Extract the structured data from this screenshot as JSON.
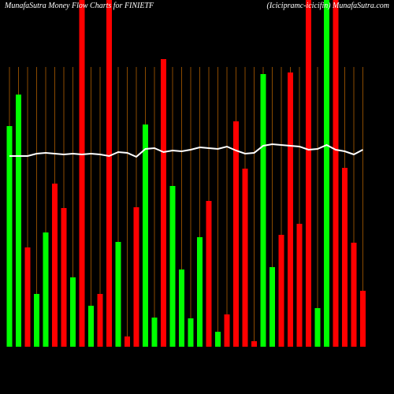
{
  "chart_data": {
    "type": "bar",
    "title": "MunafaSutra  Money Flow  Charts for FINIETF",
    "subtitle": "(Icicipramc-icicifin) MunafaSutra.com",
    "values": [
      280,
      320,
      126,
      67,
      145,
      207,
      176,
      88,
      440,
      52,
      67,
      440,
      133,
      13,
      177,
      282,
      37,
      365,
      204,
      98,
      36,
      139,
      185,
      19,
      41,
      286,
      226,
      7,
      346,
      101,
      142,
      348,
      156,
      440,
      49,
      440,
      440,
      227,
      132,
      71
    ],
    "colors": [
      "#00ff00",
      "#00ff00",
      "#ff0000",
      "#00ff00",
      "#00ff00",
      "#ff0000",
      "#ff0000",
      "#00ff00",
      "#ff0000",
      "#00ff00",
      "#ff0000",
      "#ff0000",
      "#00ff00",
      "#ff0000",
      "#ff0000",
      "#00ff00",
      "#00ff00",
      "#ff0000",
      "#00ff00",
      "#00ff00",
      "#00ff00",
      "#00ff00",
      "#ff0000",
      "#00ff00",
      "#ff0000",
      "#ff0000",
      "#ff0000",
      "#ff0000",
      "#00ff00",
      "#00ff00",
      "#ff0000",
      "#ff0000",
      "#ff0000",
      "#ff0000",
      "#00ff00",
      "#00ff00",
      "#ff0000",
      "#ff0000",
      "#ff0000",
      "#ff0000"
    ],
    "line": {
      "color": "#ffffff",
      "values": [
        242,
        242,
        242,
        245,
        246,
        245,
        244,
        245,
        244,
        245,
        244,
        242,
        247,
        246,
        241,
        251,
        252,
        247,
        249,
        248,
        250,
        253,
        252,
        251,
        254,
        249,
        245,
        246,
        255,
        257,
        256,
        255,
        254,
        250,
        251,
        256,
        250,
        248,
        244,
        250
      ]
    },
    "ylim": [
      0,
      440
    ]
  }
}
